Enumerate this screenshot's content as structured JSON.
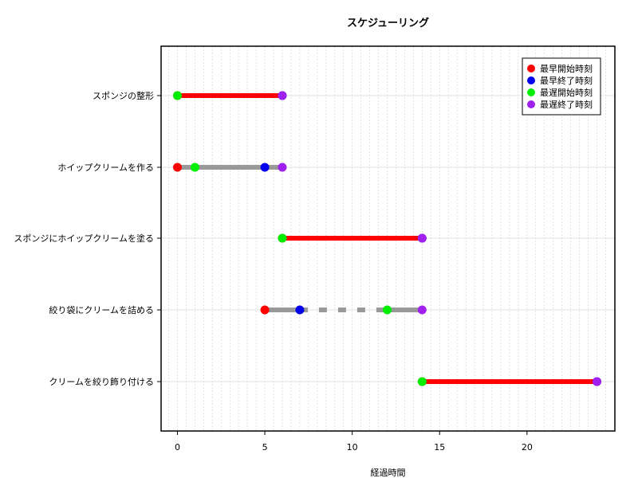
{
  "chart_data": {
    "type": "gantt",
    "title": "スケジューリング",
    "xlabel": "経過時間",
    "ylabel": "",
    "xlim": [
      -1,
      25
    ],
    "xticks": [
      0,
      5,
      10,
      15,
      20
    ],
    "grid": true,
    "legend_position": "top-right",
    "legend": [
      {
        "label": "最早開始時刻",
        "color": "#ff0000"
      },
      {
        "label": "最早終了時刻",
        "color": "#0000ee"
      },
      {
        "label": "最遅開始時刻",
        "color": "#00ee00"
      },
      {
        "label": "最遅終了時刻",
        "color": "#a020f0"
      }
    ],
    "tasks": [
      {
        "name": "スポンジの整形",
        "es": 0,
        "ef": 6,
        "ls": 0,
        "lf": 6,
        "critical": true
      },
      {
        "name": "ホイップクリームを作る",
        "es": 0,
        "ef": 5,
        "ls": 1,
        "lf": 6,
        "critical": false
      },
      {
        "name": "スポンジにホイップクリームを塗る",
        "es": 6,
        "ef": 14,
        "ls": 6,
        "lf": 14,
        "critical": true
      },
      {
        "name": "絞り袋にクリームを詰める",
        "es": 5,
        "ef": 7,
        "ls": 12,
        "lf": 14,
        "critical": false
      },
      {
        "name": "クリームを絞り飾り付ける",
        "es": 14,
        "ef": 24,
        "ls": 14,
        "lf": 24,
        "critical": true
      }
    ]
  }
}
